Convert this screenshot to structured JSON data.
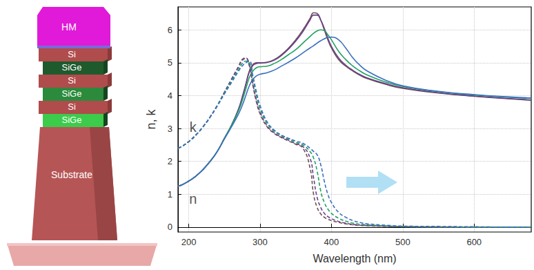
{
  "chart_data": {
    "type": "line",
    "x_label": "Wavelength (nm)",
    "y_label": "n, k",
    "x": [
      185,
      190,
      200,
      210,
      220,
      230,
      240,
      250,
      260,
      270,
      275,
      280,
      285,
      290,
      295,
      300,
      310,
      320,
      330,
      340,
      350,
      360,
      370,
      375,
      380,
      385,
      390,
      395,
      400,
      410,
      420,
      430,
      440,
      450,
      475,
      500,
      550,
      600,
      650,
      680
    ],
    "series": [
      {
        "color": "#6e5151",
        "line_style": "solid",
        "values": [
          1.25,
          1.28,
          1.4,
          1.55,
          1.75,
          2.0,
          2.3,
          2.7,
          3.1,
          3.6,
          3.95,
          4.35,
          4.75,
          4.95,
          5.0,
          5.0,
          5.02,
          5.1,
          5.25,
          5.45,
          5.7,
          6.0,
          6.35,
          6.52,
          6.5,
          6.3,
          6.0,
          5.7,
          5.45,
          5.1,
          4.9,
          4.75,
          4.62,
          4.52,
          4.35,
          4.22,
          4.08,
          3.98,
          3.9,
          3.86
        ]
      },
      {
        "color": "#6a3f8f",
        "line_style": "solid",
        "values": [
          1.25,
          1.28,
          1.4,
          1.55,
          1.75,
          2.0,
          2.3,
          2.7,
          3.1,
          3.6,
          3.95,
          4.33,
          4.72,
          4.92,
          4.98,
          4.99,
          5.01,
          5.08,
          5.22,
          5.42,
          5.66,
          5.95,
          6.3,
          6.45,
          6.45,
          6.3,
          6.05,
          5.75,
          5.5,
          5.15,
          4.93,
          4.77,
          4.64,
          4.54,
          4.37,
          4.24,
          4.09,
          3.99,
          3.91,
          3.87
        ]
      },
      {
        "color": "#22a060",
        "line_style": "solid",
        "values": [
          1.25,
          1.28,
          1.4,
          1.55,
          1.75,
          2.0,
          2.3,
          2.7,
          3.1,
          3.55,
          3.85,
          4.2,
          4.55,
          4.75,
          4.85,
          4.88,
          4.9,
          4.98,
          5.1,
          5.25,
          5.4,
          5.6,
          5.8,
          5.9,
          5.97,
          6.0,
          5.98,
          5.85,
          5.7,
          5.35,
          5.1,
          4.9,
          4.75,
          4.63,
          4.42,
          4.28,
          4.12,
          4.02,
          3.95,
          3.92
        ]
      },
      {
        "color": "#3a6fc0",
        "line_style": "solid",
        "values": [
          1.25,
          1.28,
          1.4,
          1.55,
          1.75,
          2.0,
          2.3,
          2.68,
          3.05,
          3.45,
          3.7,
          4.0,
          4.3,
          4.5,
          4.6,
          4.65,
          4.7,
          4.78,
          4.9,
          5.02,
          5.15,
          5.3,
          5.45,
          5.52,
          5.6,
          5.67,
          5.73,
          5.77,
          5.78,
          5.7,
          5.45,
          5.15,
          4.92,
          4.75,
          4.48,
          4.3,
          4.13,
          4.03,
          3.96,
          3.93
        ]
      },
      {
        "color": "#6e5151",
        "line_style": "dashed",
        "values": [
          2.4,
          2.45,
          2.6,
          2.8,
          3.05,
          3.35,
          3.7,
          4.1,
          4.5,
          4.9,
          5.1,
          5.15,
          4.9,
          4.3,
          3.8,
          3.45,
          3.05,
          2.85,
          2.72,
          2.62,
          2.52,
          2.4,
          1.8,
          1.0,
          0.6,
          0.4,
          0.3,
          0.24,
          0.2,
          0.14,
          0.1,
          0.07,
          0.05,
          0.04,
          0.02,
          0.01,
          0,
          0,
          0,
          0
        ]
      },
      {
        "color": "#6a3f8f",
        "line_style": "dashed",
        "values": [
          2.4,
          2.45,
          2.6,
          2.8,
          3.05,
          3.35,
          3.7,
          4.1,
          4.5,
          4.88,
          5.07,
          5.13,
          4.92,
          4.35,
          3.85,
          3.5,
          3.08,
          2.87,
          2.74,
          2.64,
          2.54,
          2.45,
          2.1,
          1.5,
          0.9,
          0.6,
          0.42,
          0.32,
          0.26,
          0.17,
          0.12,
          0.08,
          0.06,
          0.05,
          0.03,
          0.01,
          0,
          0,
          0,
          0
        ]
      },
      {
        "color": "#22a060",
        "line_style": "dashed",
        "values": [
          2.4,
          2.45,
          2.6,
          2.8,
          3.05,
          3.35,
          3.7,
          4.08,
          4.45,
          4.8,
          4.98,
          5.05,
          5.0,
          4.5,
          4.0,
          3.6,
          3.15,
          2.92,
          2.78,
          2.68,
          2.58,
          2.5,
          2.3,
          2.1,
          1.7,
          1.1,
          0.75,
          0.55,
          0.42,
          0.27,
          0.18,
          0.12,
          0.09,
          0.07,
          0.04,
          0.02,
          0.01,
          0,
          0,
          0
        ]
      },
      {
        "color": "#3a6fc0",
        "line_style": "dashed",
        "values": [
          2.4,
          2.45,
          2.6,
          2.8,
          3.05,
          3.35,
          3.68,
          4.05,
          4.4,
          4.75,
          4.9,
          5.0,
          5.05,
          4.6,
          4.1,
          3.7,
          3.2,
          2.95,
          2.8,
          2.7,
          2.62,
          2.55,
          2.4,
          2.3,
          2.2,
          1.9,
          1.4,
          1.0,
          0.75,
          0.45,
          0.3,
          0.2,
          0.14,
          0.1,
          0.06,
          0.03,
          0.02,
          0.01,
          0,
          0
        ]
      }
    ],
    "annotations": [
      {
        "text": "k",
        "x": 206,
        "y": 3.05
      },
      {
        "text": "n",
        "x": 206,
        "y": 0.85
      }
    ],
    "xlim": [
      185,
      680
    ],
    "xticks": [
      200,
      300,
      400,
      500,
      600
    ],
    "ylim": [
      -0.15,
      6.7
    ],
    "yticks": [
      0,
      1,
      2,
      3,
      4,
      5,
      6
    ],
    "grid": true
  },
  "diagram": {
    "layers": [
      "HM",
      "Si",
      "SiGe",
      "Si",
      "SiGe",
      "Si",
      "SiGe",
      "Substrate"
    ]
  }
}
